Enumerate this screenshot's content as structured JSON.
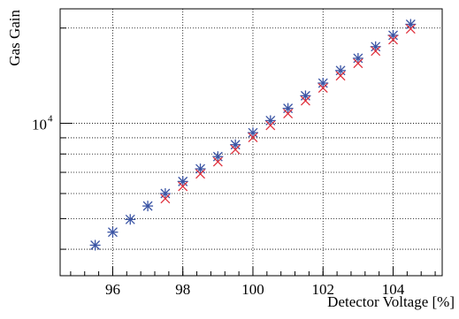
{
  "chart_data": {
    "type": "scatter",
    "title": "",
    "xlabel": "Detector Voltage [%]",
    "ylabel": "Gas Gain",
    "y_scale": "log",
    "xlim": [
      94.5,
      105.4
    ],
    "ylim": [
      3300,
      23000
    ],
    "grid": true,
    "legend": "none",
    "x_ticks": [
      96,
      98,
      100,
      102,
      104
    ],
    "x_tick_labels": [
      "96",
      "98",
      "100",
      "102",
      "104"
    ],
    "y_tick_label": {
      "base": "10",
      "exponent": "4",
      "value": 10000
    },
    "series": [
      {
        "marker": "star",
        "color": "#3a54a4",
        "x": [
          95.5,
          96.0,
          96.5,
          97.0,
          97.5,
          98.0,
          98.5,
          99.0,
          99.5,
          100.0,
          100.5,
          101.0,
          101.5,
          102.0,
          102.5,
          103.0,
          103.5,
          104.0,
          104.5
        ],
        "y": [
          4120,
          4530,
          4970,
          5480,
          6000,
          6550,
          7180,
          7850,
          8560,
          9340,
          10200,
          11150,
          12220,
          13400,
          14680,
          16050,
          17470,
          18970,
          20550
        ]
      },
      {
        "marker": "cross",
        "color": "#e0303c",
        "x": [
          97.5,
          98.0,
          98.5,
          99.0,
          99.5,
          100.0,
          100.5,
          101.0,
          101.5,
          102.0,
          102.5,
          103.0,
          103.5,
          104.0,
          104.5
        ],
        "y": [
          5780,
          6320,
          6920,
          7560,
          8260,
          9020,
          9850,
          10730,
          11780,
          12930,
          14130,
          15470,
          16910,
          18370,
          19880
        ]
      }
    ]
  }
}
